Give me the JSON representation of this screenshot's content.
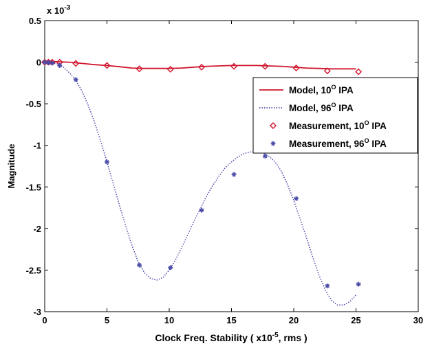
{
  "chart_data": {
    "type": "line",
    "title": "",
    "xlabel_main": "Clock Freq. Stability ( x10",
    "xlabel_sup": "-5",
    "xlabel_tail": ", rms )",
    "ylabel": "Magnitude",
    "y_multiplier_base": "x 10",
    "y_multiplier_exp": "-3",
    "xlim": [
      0,
      30
    ],
    "ylim": [
      -3,
      0.5
    ],
    "x_ticks": [
      0,
      5,
      10,
      15,
      20,
      25,
      30
    ],
    "x_tick_labels": [
      "0",
      "5",
      "10",
      "15",
      "20",
      "25",
      "30"
    ],
    "y_ticks": [
      0.5,
      0,
      -0.5,
      -1,
      -1.5,
      -2,
      -2.5,
      -3
    ],
    "y_tick_labels": [
      "0.5",
      "0",
      "-0.5",
      "-1",
      "-1.5",
      "-2",
      "-2.5",
      "-3"
    ],
    "grid": false,
    "legend_position": "top-right",
    "series": [
      {
        "name_base": "Model, 10",
        "name_sup": "O",
        "name_tail": " IPA",
        "kind": "line",
        "color": "#d0142c",
        "dash": "solid",
        "x": [
          0,
          1,
          2,
          3,
          4,
          5,
          6,
          7,
          8,
          9,
          10,
          11,
          12,
          13,
          14,
          15,
          16,
          17,
          18,
          19,
          20,
          21,
          22,
          23,
          24,
          25
        ],
        "y": [
          0.01,
          0.005,
          0.0,
          -0.015,
          -0.03,
          -0.04,
          -0.055,
          -0.07,
          -0.075,
          -0.075,
          -0.075,
          -0.07,
          -0.06,
          -0.05,
          -0.045,
          -0.04,
          -0.04,
          -0.04,
          -0.045,
          -0.05,
          -0.06,
          -0.07,
          -0.075,
          -0.08,
          -0.08,
          -0.08
        ]
      },
      {
        "name_base": "Model, 96",
        "name_sup": "O",
        "name_tail": " IPA",
        "kind": "line",
        "color": "#4a4aa8",
        "dash": "dotted",
        "x": [
          0,
          0.5,
          1,
          1.5,
          2,
          2.5,
          3,
          3.5,
          4,
          4.5,
          5,
          5.5,
          6,
          6.5,
          7,
          7.5,
          8,
          8.5,
          9,
          9.5,
          10,
          10.5,
          11,
          11.5,
          12,
          12.5,
          13,
          13.5,
          14,
          14.5,
          15,
          15.5,
          16,
          16.5,
          17,
          17.5,
          18,
          18.5,
          19,
          19.5,
          20,
          20.5,
          21,
          21.5,
          22,
          22.5,
          23,
          23.5,
          24,
          24.5,
          25
        ],
        "y": [
          0,
          -0.005,
          -0.02,
          -0.06,
          -0.13,
          -0.22,
          -0.35,
          -0.52,
          -0.72,
          -0.95,
          -1.2,
          -1.46,
          -1.72,
          -1.97,
          -2.2,
          -2.4,
          -2.53,
          -2.6,
          -2.62,
          -2.59,
          -2.5,
          -2.38,
          -2.23,
          -2.07,
          -1.91,
          -1.76,
          -1.61,
          -1.48,
          -1.37,
          -1.27,
          -1.2,
          -1.14,
          -1.1,
          -1.08,
          -1.08,
          -1.09,
          -1.13,
          -1.2,
          -1.31,
          -1.47,
          -1.66,
          -1.88,
          -2.1,
          -2.33,
          -2.55,
          -2.73,
          -2.86,
          -2.92,
          -2.92,
          -2.88,
          -2.8
        ]
      },
      {
        "name_base": "Measurement, 10",
        "name_sup": "O",
        "name_tail": " IPA",
        "kind": "marker-diamond",
        "color": "#d0142c",
        "x": [
          0,
          0.3,
          0.6,
          1.2,
          2.5,
          5,
          7.6,
          10.1,
          12.6,
          15.2,
          17.7,
          20.2,
          22.7,
          25.2
        ],
        "y": [
          0.0,
          0.0,
          0.0,
          0.0,
          -0.015,
          -0.04,
          -0.08,
          -0.085,
          -0.06,
          -0.05,
          -0.05,
          -0.07,
          -0.105,
          -0.115
        ]
      },
      {
        "name_base": "Measurement, 96",
        "name_sup": "O",
        "name_tail": " IPA",
        "kind": "marker-star",
        "color": "#4a4aa8",
        "x": [
          0,
          0.3,
          0.6,
          1.2,
          2.5,
          5,
          7.6,
          10.1,
          12.6,
          15.2,
          17.7,
          20.2,
          22.7,
          25.2
        ],
        "y": [
          0,
          -0.005,
          -0.01,
          -0.04,
          -0.21,
          -1.2,
          -2.44,
          -2.47,
          -1.78,
          -1.35,
          -1.13,
          -1.64,
          -2.69,
          -2.67
        ]
      }
    ]
  }
}
